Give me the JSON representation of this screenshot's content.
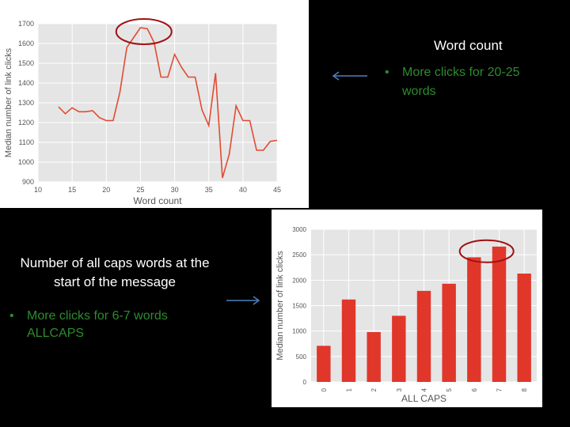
{
  "slide": {
    "heading_word_count": "Word count",
    "bullet_word_count": "More clicks for 20-25 words",
    "heading_caps": "Number of all caps words at the start of the message",
    "bullet_caps": "More clicks for 6-7 words ALLCAPS",
    "bullet_color": "#2e8b2e",
    "arrow_color": "#4f81bd",
    "highlight_color": "#a01010"
  },
  "chart_data": [
    {
      "type": "line",
      "xlabel": "Word count",
      "ylabel": "Median number of link clicks",
      "xlim": [
        10,
        45
      ],
      "ylim": [
        900,
        1700
      ],
      "x_ticks": [
        10,
        15,
        20,
        25,
        30,
        35,
        40,
        45
      ],
      "y_ticks": [
        900,
        1000,
        1100,
        1200,
        1300,
        1400,
        1500,
        1600,
        1700
      ],
      "grid": true,
      "line_color": "#e24a33",
      "series": [
        {
          "x": [
            13,
            14,
            15,
            16,
            17,
            18,
            19,
            20,
            21,
            22,
            23,
            24,
            25,
            26,
            27,
            28,
            29,
            30,
            31,
            32,
            33,
            34,
            35,
            36,
            37,
            38,
            39,
            40,
            41,
            42,
            43,
            44,
            45
          ],
          "y": [
            1280,
            1245,
            1275,
            1255,
            1255,
            1260,
            1225,
            1210,
            1210,
            1355,
            1580,
            1630,
            1680,
            1675,
            1605,
            1430,
            1430,
            1545,
            1480,
            1430,
            1430,
            1265,
            1185,
            1450,
            920,
            1040,
            1285,
            1210,
            1210,
            1060,
            1060,
            1105,
            1110
          ]
        }
      ],
      "highlight": {
        "x": 25.5,
        "y": 1660
      }
    },
    {
      "type": "bar",
      "xlabel": "ALL CAPS",
      "ylabel": "Median number of link clicks",
      "categories": [
        "0",
        "1",
        "2",
        "3",
        "4",
        "5",
        "6",
        "7",
        "8"
      ],
      "values": [
        710,
        1620,
        980,
        1300,
        1790,
        1930,
        2450,
        2660,
        2130
      ],
      "ylim": [
        0,
        3000
      ],
      "y_ticks": [
        0,
        500,
        1000,
        1500,
        2000,
        2500,
        3000
      ],
      "grid": true,
      "bar_color": "#e0372a",
      "highlight": {
        "category": "6.5",
        "value": 2600
      }
    }
  ]
}
